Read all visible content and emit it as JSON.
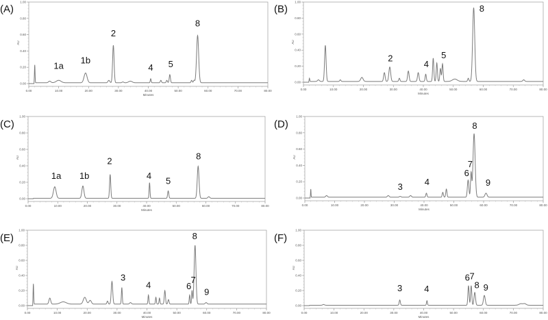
{
  "chart_data": {
    "type": "line",
    "shared_axes": {
      "xlabel": "Minutes",
      "ylabel": "AU",
      "xlim": [
        0,
        80
      ],
      "ylim": [
        0,
        1
      ],
      "x_ticks": [
        "0.00",
        "10.00",
        "20.00",
        "30.00",
        "40.00",
        "50.00",
        "60.00",
        "70.00",
        "80.00"
      ],
      "y_ticks": [
        "0.00",
        "0.20",
        "0.40",
        "0.60",
        "0.80",
        "1.00"
      ],
      "grid": false,
      "line_color": "#7a7a7a"
    },
    "panels": [
      {
        "label": "(A)",
        "baseline": 0.01,
        "peaks": [
          [
            2.0,
            0.22,
            0.1
          ],
          [
            7,
            0.02,
            0.4
          ],
          [
            10,
            0.03,
            0.8
          ],
          [
            19,
            0.12,
            0.5
          ],
          [
            26.8,
            0.03,
            0.3
          ],
          [
            28.3,
            0.46,
            0.25
          ],
          [
            31.5,
            0.01,
            0.3
          ],
          [
            34,
            0.02,
            0.6
          ],
          [
            40.8,
            0.05,
            0.15
          ],
          [
            44.2,
            0.03,
            0.2
          ],
          [
            46.2,
            0.03,
            0.2
          ],
          [
            47.2,
            0.1,
            0.2
          ],
          [
            54.5,
            0.03,
            0.2
          ],
          [
            55.3,
            0.03,
            0.2
          ],
          [
            56.5,
            0.58,
            0.35
          ]
        ],
        "annotations": [
          {
            "text": "1a",
            "x": 10,
            "y": 0.18
          },
          {
            "text": "1b",
            "x": 19,
            "y": 0.25
          },
          {
            "text": "2",
            "x": 28.3,
            "y": 0.58
          },
          {
            "text": "4",
            "x": 40.8,
            "y": 0.16
          },
          {
            "text": "5",
            "x": 47.5,
            "y": 0.2
          },
          {
            "text": "8",
            "x": 56.5,
            "y": 0.7
          }
        ]
      },
      {
        "label": "(B)",
        "baseline": 0.01,
        "peaks": [
          [
            2,
            0.04,
            0.1
          ],
          [
            5,
            0.02,
            0.3
          ],
          [
            7.3,
            0.45,
            0.25
          ],
          [
            12.3,
            0.02,
            0.2
          ],
          [
            19.5,
            0.05,
            0.4
          ],
          [
            27,
            0.11,
            0.25
          ],
          [
            28.8,
            0.18,
            0.3
          ],
          [
            32,
            0.04,
            0.2
          ],
          [
            35,
            0.13,
            0.25
          ],
          [
            38.3,
            0.11,
            0.25
          ],
          [
            40.8,
            0.09,
            0.2
          ],
          [
            43.3,
            0.29,
            0.2
          ],
          [
            44.5,
            0.23,
            0.2
          ],
          [
            45.7,
            0.16,
            0.2
          ],
          [
            46.4,
            0.22,
            0.2
          ],
          [
            50.5,
            0.03,
            0.8
          ],
          [
            55,
            0.04,
            0.2
          ],
          [
            56.8,
            0.92,
            0.35
          ],
          [
            73.5,
            0.02,
            0.3
          ]
        ],
        "annotations": [
          {
            "text": "2",
            "x": 29,
            "y": 0.26
          },
          {
            "text": "4",
            "x": 41,
            "y": 0.19
          },
          {
            "text": "5",
            "x": 46.8,
            "y": 0.3
          },
          {
            "text": "8",
            "x": 59.5,
            "y": 0.88
          }
        ]
      },
      {
        "label": "(C)",
        "baseline": 0.005,
        "peaks": [
          [
            9,
            0.14,
            0.45
          ],
          [
            18.5,
            0.15,
            0.35
          ],
          [
            27.7,
            0.29,
            0.2
          ],
          [
            41,
            0.19,
            0.15
          ],
          [
            47.3,
            0.09,
            0.2
          ],
          [
            57.4,
            0.39,
            0.3
          ],
          [
            61,
            0.02,
            0.3
          ]
        ],
        "annotations": [
          {
            "text": "1a",
            "x": 9.5,
            "y": 0.24
          },
          {
            "text": "1b",
            "x": 19,
            "y": 0.24
          },
          {
            "text": "2",
            "x": 27.5,
            "y": 0.42
          },
          {
            "text": "4",
            "x": 40.8,
            "y": 0.24
          },
          {
            "text": "5",
            "x": 47.3,
            "y": 0.18
          },
          {
            "text": "8",
            "x": 57.5,
            "y": 0.48
          }
        ]
      },
      {
        "label": "(D)",
        "baseline": 0.01,
        "peaks": [
          [
            2,
            0.1,
            0.08
          ],
          [
            7.3,
            0.02,
            0.3
          ],
          [
            28,
            0.02,
            0.3
          ],
          [
            32,
            0.01,
            0.3
          ],
          [
            35.5,
            0.02,
            0.3
          ],
          [
            40.8,
            0.05,
            0.2
          ],
          [
            46.3,
            0.06,
            0.2
          ],
          [
            47.5,
            0.1,
            0.2
          ],
          [
            54.8,
            0.21,
            0.25
          ],
          [
            55.8,
            0.3,
            0.2
          ],
          [
            56.8,
            0.78,
            0.35
          ],
          [
            60.8,
            0.05,
            0.35
          ]
        ],
        "annotations": [
          {
            "text": "3",
            "x": 32,
            "y": 0.1
          },
          {
            "text": "4",
            "x": 41,
            "y": 0.16
          },
          {
            "text": "6",
            "x": 54.3,
            "y": 0.27
          },
          {
            "text": "7",
            "x": 55.5,
            "y": 0.38
          },
          {
            "text": "8",
            "x": 57,
            "y": 0.85
          },
          {
            "text": "9",
            "x": 61.5,
            "y": 0.15
          }
        ]
      },
      {
        "label": "(E)",
        "baseline": 0.02,
        "peaks": [
          [
            2,
            0.27,
            0.1
          ],
          [
            7.5,
            0.08,
            0.3
          ],
          [
            12,
            0.03,
            1
          ],
          [
            19.2,
            0.09,
            0.5
          ],
          [
            21,
            0.05,
            0.4
          ],
          [
            26.8,
            0.04,
            0.2
          ],
          [
            28.3,
            0.3,
            0.25
          ],
          [
            31.6,
            0.22,
            0.15
          ],
          [
            34.5,
            0.02,
            0.3
          ],
          [
            40.5,
            0.12,
            0.15
          ],
          [
            43,
            0.09,
            0.15
          ],
          [
            44.2,
            0.08,
            0.15
          ],
          [
            46,
            0.18,
            0.2
          ],
          [
            47.2,
            0.06,
            0.2
          ],
          [
            54.3,
            0.12,
            0.15
          ],
          [
            55.1,
            0.18,
            0.15
          ],
          [
            56.1,
            0.78,
            0.3
          ],
          [
            59.8,
            0.02,
            0.3
          ]
        ],
        "annotations": [
          {
            "text": "3",
            "x": 32,
            "y": 0.33
          },
          {
            "text": "4",
            "x": 40.5,
            "y": 0.23
          },
          {
            "text": "6",
            "x": 54,
            "y": 0.22
          },
          {
            "text": "7",
            "x": 55.5,
            "y": 0.3
          },
          {
            "text": "8",
            "x": 56,
            "y": 0.88
          },
          {
            "text": "9",
            "x": 60,
            "y": 0.14
          }
        ]
      },
      {
        "label": "(F)",
        "baseline": 0.005,
        "peaks": [
          [
            6.5,
            0.01,
            0.3
          ],
          [
            32,
            0.07,
            0.2
          ],
          [
            41.1,
            0.06,
            0.15
          ],
          [
            55,
            0.26,
            0.2
          ],
          [
            55.9,
            0.26,
            0.2
          ],
          [
            57.1,
            0.17,
            0.25
          ],
          [
            60.3,
            0.13,
            0.3
          ],
          [
            72.5,
            0.02,
            0.6
          ],
          [
            73.8,
            0.02,
            0.5
          ]
        ],
        "annotations": [
          {
            "text": "3",
            "x": 32,
            "y": 0.19
          },
          {
            "text": "4",
            "x": 41,
            "y": 0.18
          },
          {
            "text": "6",
            "x": 54.6,
            "y": 0.33
          },
          {
            "text": "7",
            "x": 56.2,
            "y": 0.35
          },
          {
            "text": "8",
            "x": 57.8,
            "y": 0.23
          },
          {
            "text": "9",
            "x": 60.8,
            "y": 0.2
          }
        ]
      }
    ]
  }
}
